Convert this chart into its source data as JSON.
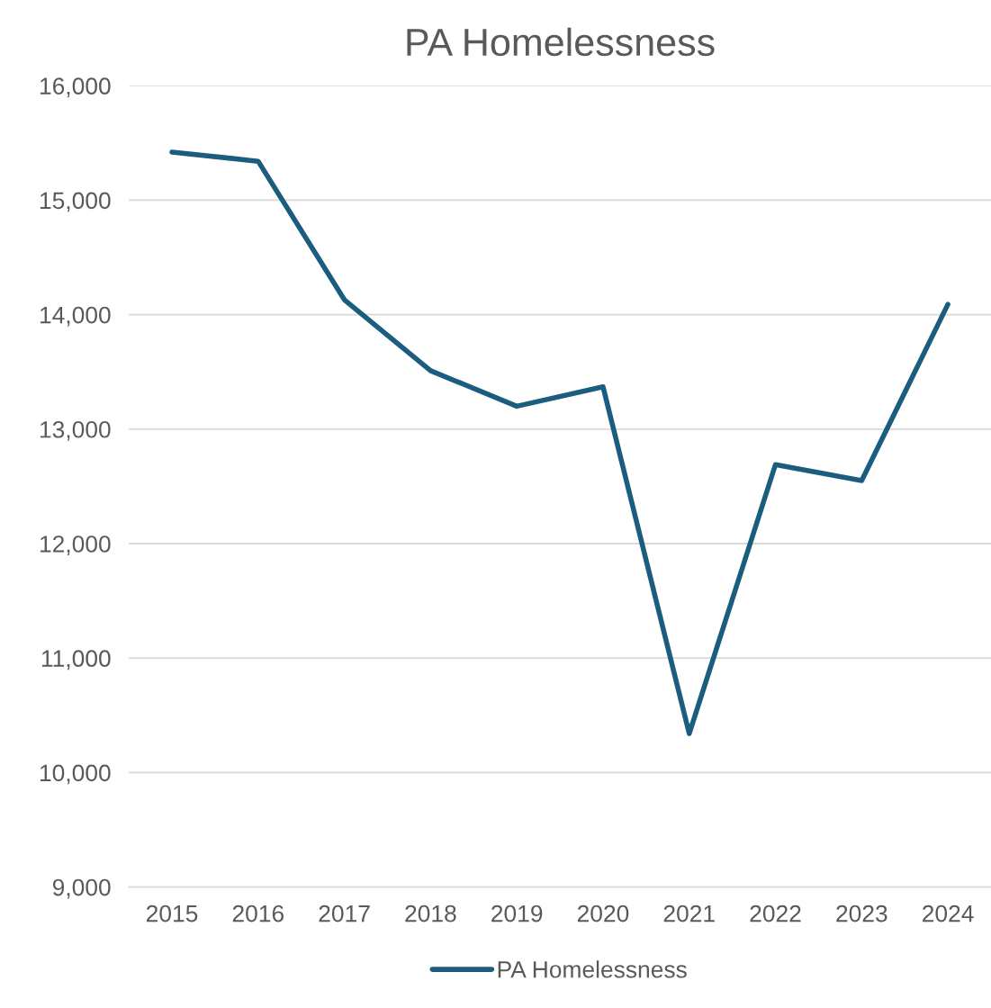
{
  "chart_data": {
    "type": "line",
    "title": "PA Homelessness",
    "categories": [
      "2015",
      "2016",
      "2017",
      "2018",
      "2019",
      "2020",
      "2021",
      "2022",
      "2023",
      "2024"
    ],
    "series": [
      {
        "name": "PA Homelessness",
        "color": "#1b5d7e",
        "values": [
          15420,
          15340,
          14130,
          13510,
          13200,
          13370,
          10340,
          12690,
          12550,
          14090
        ]
      }
    ],
    "ylim": [
      9000,
      16000
    ],
    "yticks": [
      {
        "value": 9000,
        "label": "9,000"
      },
      {
        "value": 10000,
        "label": "10,000"
      },
      {
        "value": 11000,
        "label": "11,000"
      },
      {
        "value": 12000,
        "label": "12,000"
      },
      {
        "value": 13000,
        "label": "13,000"
      },
      {
        "value": 14000,
        "label": "14,000"
      },
      {
        "value": 15000,
        "label": "15,000"
      },
      {
        "value": 16000,
        "label": "16,000"
      }
    ],
    "grid": "y",
    "legend": "bottom",
    "marker": "none",
    "line_style": "solid"
  }
}
